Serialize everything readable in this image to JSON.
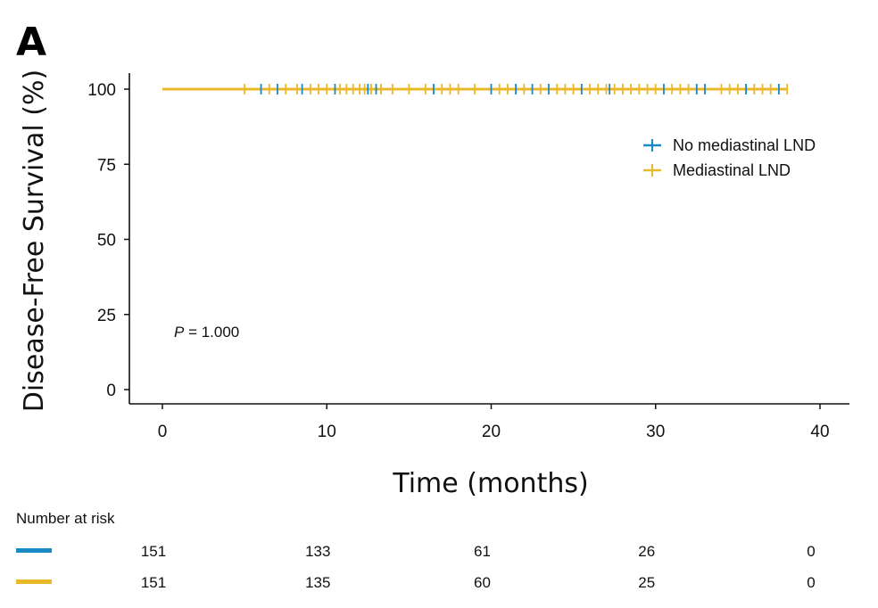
{
  "panel_label": "A",
  "chart_data": {
    "type": "line",
    "ylabel": "Disease-Free Survival (%)",
    "xlabel": "Time (months)",
    "xlim": [
      0,
      40
    ],
    "ylim": [
      0,
      100
    ],
    "x_ticks": [
      "0",
      "10",
      "20",
      "30",
      "40"
    ],
    "y_ticks": [
      "0",
      "25",
      "50",
      "75",
      "100"
    ],
    "annotation": {
      "italic": "P",
      "rest": " = 1.000"
    },
    "legend_position": "right, below top",
    "series": [
      {
        "name": "No mediastinal LND",
        "color": "#1a8ac6",
        "x": [
          0,
          38
        ],
        "y": [
          100,
          100
        ],
        "censored_x": [
          6,
          7,
          8.5,
          10.5,
          12.5,
          13,
          16.5,
          20,
          21.5,
          22.5,
          23.5,
          25.5,
          27.2,
          30.5,
          32.5,
          33,
          35.5,
          37.5
        ]
      },
      {
        "name": "Mediastinal LND",
        "color": "#e9b92a",
        "x": [
          0,
          38
        ],
        "y": [
          100,
          100
        ],
        "censored_x": [
          5,
          6.5,
          7.5,
          8.2,
          9,
          9.5,
          10,
          10.8,
          11.2,
          11.6,
          12,
          12.3,
          12.7,
          13.3,
          14,
          15,
          16,
          17,
          17.5,
          18,
          19,
          20.5,
          21,
          22,
          23,
          24,
          24.5,
          25,
          26,
          26.5,
          27,
          27.5,
          28,
          28.5,
          29,
          29.5,
          30,
          31,
          31.5,
          32,
          34,
          34.5,
          35,
          36,
          36.5,
          37,
          38
        ]
      }
    ],
    "risk_table": {
      "title": "Number at risk",
      "timepoints": [
        0,
        10,
        20,
        30,
        40
      ],
      "rows": [
        {
          "color": "#1a8ac6",
          "values": [
            "151",
            "133",
            "61",
            "26",
            "0"
          ]
        },
        {
          "color": "#e9b92a",
          "values": [
            "151",
            "135",
            "60",
            "25",
            "0"
          ]
        }
      ]
    }
  }
}
